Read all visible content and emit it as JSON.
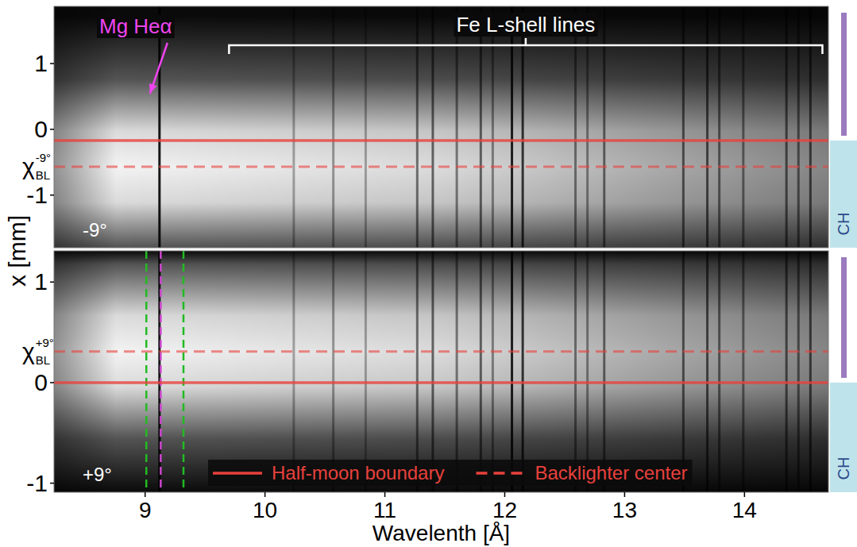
{
  "chart_data": [
    {
      "type": "image",
      "panel_label": "-9°",
      "y_label": "x [mm]",
      "xlim": [
        8.24,
        14.7
      ],
      "ylim": [
        -1.8,
        1.87
      ],
      "yticks": [
        -1,
        0,
        1
      ],
      "tick_labels": "y",
      "backlighter_label": {
        "symbol": "χ",
        "sub": "BL",
        "sup": "-9°",
        "value": -0.57
      },
      "reference_lines": [
        {
          "name": "Half-moon boundary",
          "color": "#e8413c",
          "line_style": "solid",
          "value": -0.17
        },
        {
          "name": "Backlighter center",
          "color": "#e8413c",
          "line_style": "dashed",
          "value": -0.57
        }
      ],
      "absorption_lines": {
        "wavelengths": [
          9.12,
          10.24,
          10.57,
          10.84,
          11.27,
          11.4,
          11.6,
          11.8,
          11.9,
          12.06,
          12.15,
          12.59,
          12.69,
          12.83,
          13.49,
          13.69,
          13.79,
          13.99,
          14.35,
          14.45,
          14.55
        ],
        "depth": [
          0.9,
          0.3,
          0.35,
          0.3,
          0.5,
          0.55,
          0.45,
          0.55,
          0.4,
          0.85,
          0.75,
          0.45,
          0.4,
          0.5,
          0.55,
          0.6,
          0.5,
          0.45,
          0.55,
          0.5,
          0.6
        ]
      },
      "annotations": [
        {
          "text": "Mg Heα",
          "color": "#ee44ee",
          "x": 9.12
        },
        {
          "text": "Fe L-shell lines",
          "color": "#ffffff",
          "x": [
            9.7,
            14.65
          ]
        }
      ],
      "side_label": "CH"
    },
    {
      "type": "image",
      "panel_label": "+9°",
      "x_label": "Wavelenth [Å]",
      "xlim": [
        8.24,
        14.7
      ],
      "ylim": [
        -1.09,
        1.31
      ],
      "xticks": [
        9,
        10,
        11,
        12,
        13,
        14
      ],
      "yticks": [
        -1,
        0,
        1
      ],
      "backlighter_label": {
        "symbol": "χ",
        "sub": "BL",
        "sup": "+9°",
        "value": 0.31
      },
      "reference_lines": [
        {
          "name": "Half-moon boundary",
          "color": "#e8413c",
          "line_style": "solid",
          "value": 0.0
        },
        {
          "name": "Backlighter center",
          "color": "#e8413c",
          "line_style": "dashed",
          "value": 0.31
        }
      ],
      "markers": [
        {
          "value": 9.01,
          "color": "#22bb22",
          "line_style": "dashed"
        },
        {
          "value": 9.13,
          "color": "#cc44cc",
          "line_style": "dashed"
        },
        {
          "value": 9.32,
          "color": "#22bb22",
          "line_style": "dashed"
        }
      ],
      "absorption_lines": {
        "wavelengths": [
          9.12,
          10.24,
          10.57,
          10.84,
          11.27,
          11.4,
          11.6,
          11.8,
          11.9,
          12.06,
          12.15,
          12.59,
          12.69,
          12.83,
          13.49,
          13.69,
          13.79,
          13.99,
          14.35,
          14.45,
          14.55
        ],
        "depth": [
          0.9,
          0.3,
          0.35,
          0.3,
          0.5,
          0.55,
          0.45,
          0.55,
          0.4,
          0.85,
          0.75,
          0.45,
          0.4,
          0.5,
          0.55,
          0.6,
          0.5,
          0.45,
          0.55,
          0.5,
          0.6
        ]
      },
      "legend": "lower right",
      "side_label": "CH"
    }
  ]
}
